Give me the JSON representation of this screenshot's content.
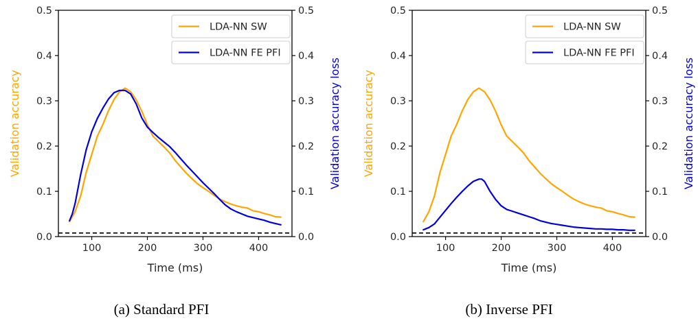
{
  "colors": {
    "sw": "#ffa500",
    "fe": "#0000dd",
    "chance": "#000000"
  },
  "chart_data": [
    {
      "type": "line",
      "caption": "(a) Standard PFI",
      "xlabel": "Time (ms)",
      "ylabel_left": "Validation accuracy",
      "ylabel_right": "Validation accuracy loss",
      "xlim": [
        40,
        460
      ],
      "ylim": [
        0,
        0.5
      ],
      "ylim_right": [
        0,
        0.5
      ],
      "xticks": [
        "100",
        "200",
        "300",
        "400"
      ],
      "yticks": [
        "0.0",
        "0.1",
        "0.2",
        "0.3",
        "0.4",
        "0.5"
      ],
      "yticks_right": [
        "0.0",
        "0.1",
        "0.2",
        "0.3",
        "0.4",
        "0.5"
      ],
      "legend_position": "top-right",
      "chance_level": 0.008,
      "series": [
        {
          "name": "LDA-NN SW",
          "color": "#ffa500",
          "axis": "left",
          "x": [
            60,
            70,
            80,
            90,
            100,
            110,
            120,
            130,
            140,
            150,
            160,
            170,
            180,
            190,
            200,
            210,
            220,
            230,
            240,
            250,
            260,
            270,
            280,
            290,
            300,
            310,
            320,
            330,
            340,
            350,
            360,
            370,
            380,
            390,
            400,
            410,
            420,
            430,
            440
          ],
          "values": [
            0.033,
            0.055,
            0.09,
            0.142,
            0.182,
            0.222,
            0.248,
            0.278,
            0.303,
            0.32,
            0.328,
            0.32,
            0.302,
            0.277,
            0.247,
            0.222,
            0.21,
            0.198,
            0.185,
            0.168,
            0.154,
            0.14,
            0.128,
            0.117,
            0.108,
            0.1,
            0.091,
            0.083,
            0.077,
            0.072,
            0.068,
            0.065,
            0.063,
            0.057,
            0.055,
            0.051,
            0.048,
            0.044,
            0.043
          ]
        },
        {
          "name": "LDA-NN FE PFI",
          "color": "#0000dd",
          "axis": "right",
          "x": [
            60,
            65,
            70,
            80,
            90,
            100,
            110,
            120,
            130,
            140,
            150,
            160,
            170,
            180,
            190,
            200,
            210,
            220,
            230,
            240,
            250,
            260,
            270,
            280,
            290,
            300,
            310,
            320,
            330,
            340,
            350,
            360,
            370,
            380,
            390,
            400,
            410,
            420,
            430,
            440
          ],
          "values": [
            0.035,
            0.05,
            0.073,
            0.137,
            0.192,
            0.232,
            0.261,
            0.284,
            0.304,
            0.318,
            0.323,
            0.323,
            0.315,
            0.293,
            0.262,
            0.242,
            0.23,
            0.219,
            0.209,
            0.199,
            0.186,
            0.172,
            0.158,
            0.145,
            0.132,
            0.119,
            0.107,
            0.095,
            0.082,
            0.07,
            0.061,
            0.055,
            0.05,
            0.045,
            0.042,
            0.039,
            0.036,
            0.032,
            0.029,
            0.026
          ]
        }
      ]
    },
    {
      "type": "line",
      "caption": "(b) Inverse PFI",
      "xlabel": "Time (ms)",
      "ylabel_left": "Validation accuracy",
      "ylabel_right": "Validation accuracy loss",
      "xlim": [
        40,
        460
      ],
      "ylim": [
        0,
        0.5
      ],
      "ylim_right": [
        0,
        0.5
      ],
      "xticks": [
        "100",
        "200",
        "300",
        "400"
      ],
      "yticks": [
        "0.0",
        "0.1",
        "0.2",
        "0.3",
        "0.4",
        "0.5"
      ],
      "yticks_right": [
        "0.0",
        "0.1",
        "0.2",
        "0.3",
        "0.4",
        "0.5"
      ],
      "legend_position": "top-right",
      "chance_level": 0.008,
      "series": [
        {
          "name": "LDA-NN SW",
          "color": "#ffa500",
          "axis": "left",
          "x": [
            60,
            70,
            80,
            90,
            100,
            110,
            120,
            130,
            140,
            150,
            160,
            170,
            180,
            190,
            200,
            210,
            220,
            230,
            240,
            250,
            260,
            270,
            280,
            290,
            300,
            310,
            320,
            330,
            340,
            350,
            360,
            370,
            380,
            390,
            400,
            410,
            420,
            430,
            440
          ],
          "values": [
            0.033,
            0.055,
            0.09,
            0.142,
            0.182,
            0.222,
            0.248,
            0.278,
            0.303,
            0.32,
            0.328,
            0.32,
            0.302,
            0.277,
            0.247,
            0.222,
            0.21,
            0.198,
            0.185,
            0.168,
            0.154,
            0.14,
            0.128,
            0.117,
            0.108,
            0.1,
            0.091,
            0.083,
            0.077,
            0.072,
            0.068,
            0.065,
            0.063,
            0.057,
            0.055,
            0.051,
            0.048,
            0.044,
            0.043
          ]
        },
        {
          "name": "LDA-NN FE PFI",
          "color": "#0000dd",
          "axis": "right",
          "x": [
            60,
            70,
            80,
            90,
            100,
            110,
            120,
            130,
            140,
            150,
            160,
            165,
            170,
            180,
            190,
            200,
            210,
            220,
            230,
            240,
            250,
            260,
            270,
            280,
            290,
            300,
            310,
            320,
            330,
            340,
            350,
            360,
            370,
            380,
            390,
            400,
            410,
            420,
            430,
            440
          ],
          "values": [
            0.015,
            0.02,
            0.028,
            0.043,
            0.058,
            0.073,
            0.087,
            0.1,
            0.112,
            0.122,
            0.127,
            0.127,
            0.122,
            0.1,
            0.082,
            0.068,
            0.06,
            0.056,
            0.052,
            0.048,
            0.044,
            0.04,
            0.035,
            0.032,
            0.029,
            0.027,
            0.025,
            0.023,
            0.021,
            0.02,
            0.019,
            0.018,
            0.017,
            0.017,
            0.016,
            0.016,
            0.015,
            0.015,
            0.014,
            0.014
          ]
        }
      ]
    }
  ]
}
